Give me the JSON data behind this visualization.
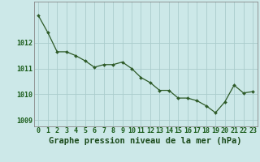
{
  "x": [
    0,
    1,
    2,
    3,
    4,
    5,
    6,
    7,
    8,
    9,
    10,
    11,
    12,
    13,
    14,
    15,
    16,
    17,
    18,
    19,
    20,
    21,
    22,
    23
  ],
  "y": [
    1013.05,
    1012.4,
    1011.65,
    1011.65,
    1011.5,
    1011.3,
    1011.05,
    1011.15,
    1011.15,
    1011.25,
    1011.0,
    1010.65,
    1010.45,
    1010.15,
    1010.15,
    1009.85,
    1009.85,
    1009.75,
    1009.55,
    1009.28,
    1009.7,
    1010.35,
    1010.05,
    1010.1
  ],
  "line_color": "#2d5a27",
  "marker_color": "#2d5a27",
  "bg_color": "#cce8e8",
  "grid_color": "#aacccc",
  "xlabel": "Graphe pression niveau de la mer (hPa)",
  "ylabel_ticks": [
    1009,
    1010,
    1011,
    1012
  ],
  "ylim": [
    1008.75,
    1013.6
  ],
  "xlim": [
    -0.5,
    23.5
  ],
  "xlabel_color": "#1a4a1a",
  "tick_label_color": "#1a5c1a",
  "tick_fontsize": 6.0,
  "xlabel_fontsize": 7.5
}
